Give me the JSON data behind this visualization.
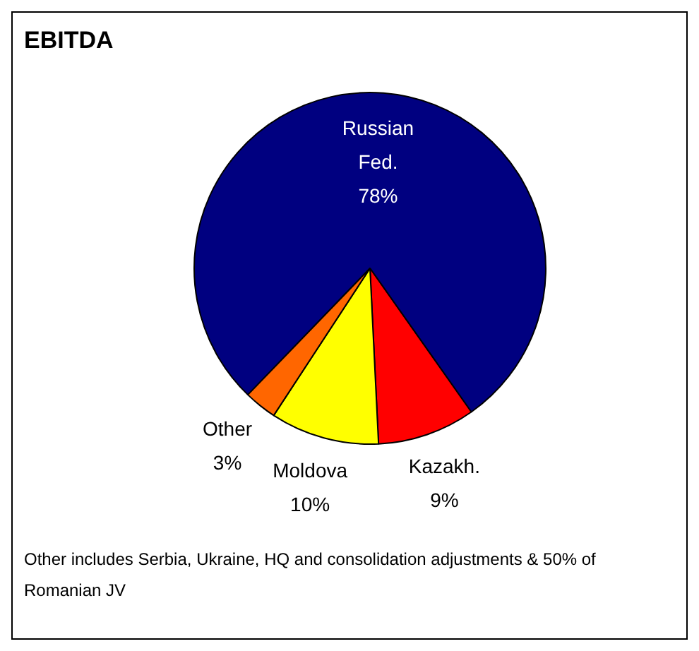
{
  "chart_data": {
    "type": "pie",
    "title": "EBITDA",
    "categories": [
      "Russian Fed.",
      "Kazakh.",
      "Moldova",
      "Other"
    ],
    "values": [
      78,
      9,
      10,
      3
    ],
    "value_labels": [
      "78%",
      "9%",
      "10%",
      "3%"
    ],
    "colors": [
      "#000080",
      "#ff0000",
      "#ffff00",
      "#ff6600"
    ],
    "legend": false,
    "annotations": [
      "Other includes Serbia, Ukraine, HQ and consolidation adjustments & 50% of Romanian JV"
    ]
  }
}
